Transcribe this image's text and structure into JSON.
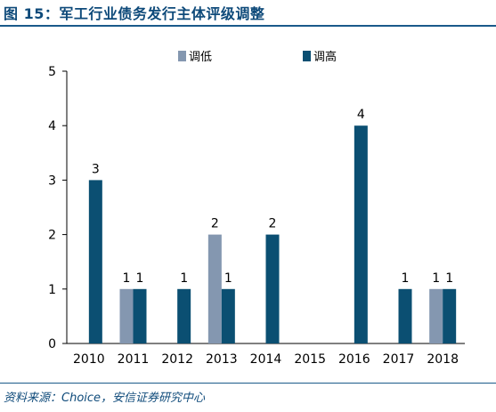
{
  "title": "图 15：军工行业债务发行主体评级调整",
  "source": "资料来源：Choice，安信证券研究中心",
  "chart_data": {
    "type": "bar",
    "categories": [
      "2010",
      "2011",
      "2012",
      "2013",
      "2014",
      "2015",
      "2016",
      "2017",
      "2018"
    ],
    "series": [
      {
        "name": "调低",
        "color": "#8497b0",
        "values": [
          0,
          1,
          0,
          2,
          0,
          0,
          0,
          0,
          1
        ]
      },
      {
        "name": "调高",
        "color": "#0b4f72",
        "values": [
          3,
          1,
          1,
          1,
          2,
          0,
          4,
          1,
          1
        ]
      }
    ],
    "ylim": [
      0,
      5
    ],
    "yticks": [
      0,
      1,
      2,
      3,
      4,
      5
    ],
    "xlabel": "",
    "ylabel": "",
    "legend": "top-center",
    "grid": false
  }
}
